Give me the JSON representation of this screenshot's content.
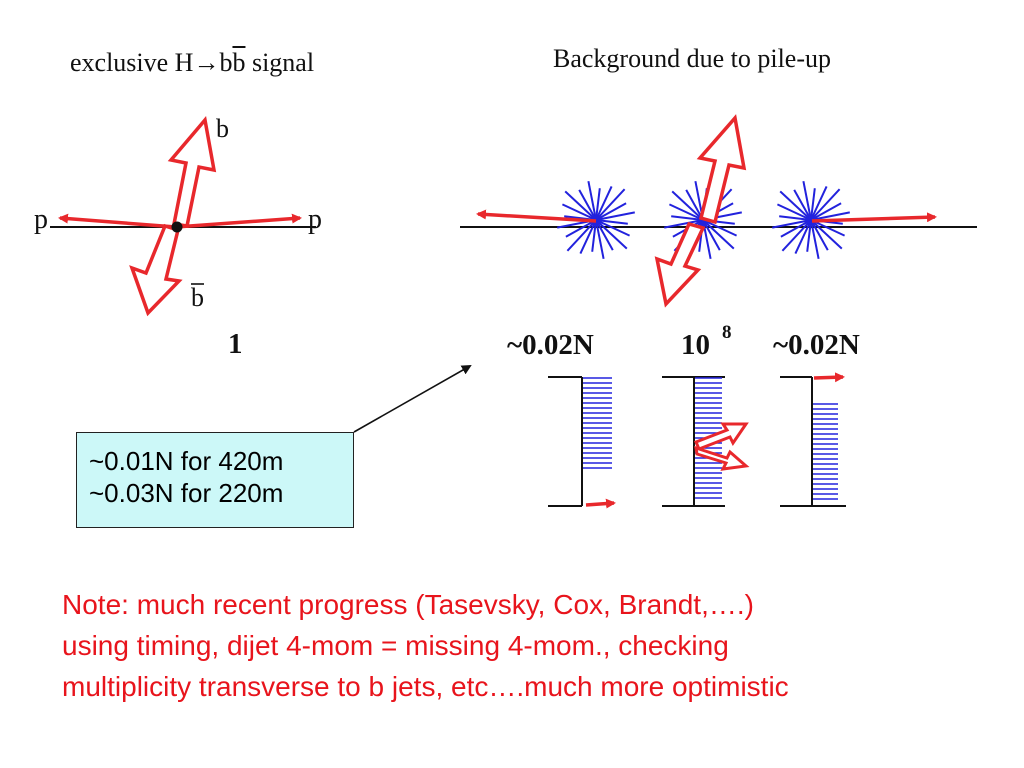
{
  "titles": {
    "signal_prefix": "exclusive H",
    "signal_arrow": "→",
    "signal_b1": "b",
    "signal_b2": "b",
    "signal_suffix": " signal",
    "background": "Background due to pile-up"
  },
  "signal": {
    "proton_left": "p",
    "proton_right": "p",
    "jet_b": "b",
    "jet_bbar": "b",
    "factor": "1"
  },
  "background": {
    "factor_left": "~0.02N",
    "factor_center_base": "10",
    "factor_center_exp": "8",
    "factor_right": "~0.02N"
  },
  "callout": {
    "line1": "~0.01N for 420m",
    "line2": "~0.03N for 220m"
  },
  "note": {
    "line1": "Note: much recent progress (Tasevsky, Cox, Brandt,….)",
    "line2": "using timing, dijet 4-mom = missing 4-mom., checking",
    "line3": "multiplicity transverse to b jets, etc….much more optimistic"
  },
  "colors": {
    "arrow": "#e8282c",
    "starburst": "#2222dd",
    "callout_bg": "#ccf8f8",
    "note_text": "#e8141c"
  }
}
